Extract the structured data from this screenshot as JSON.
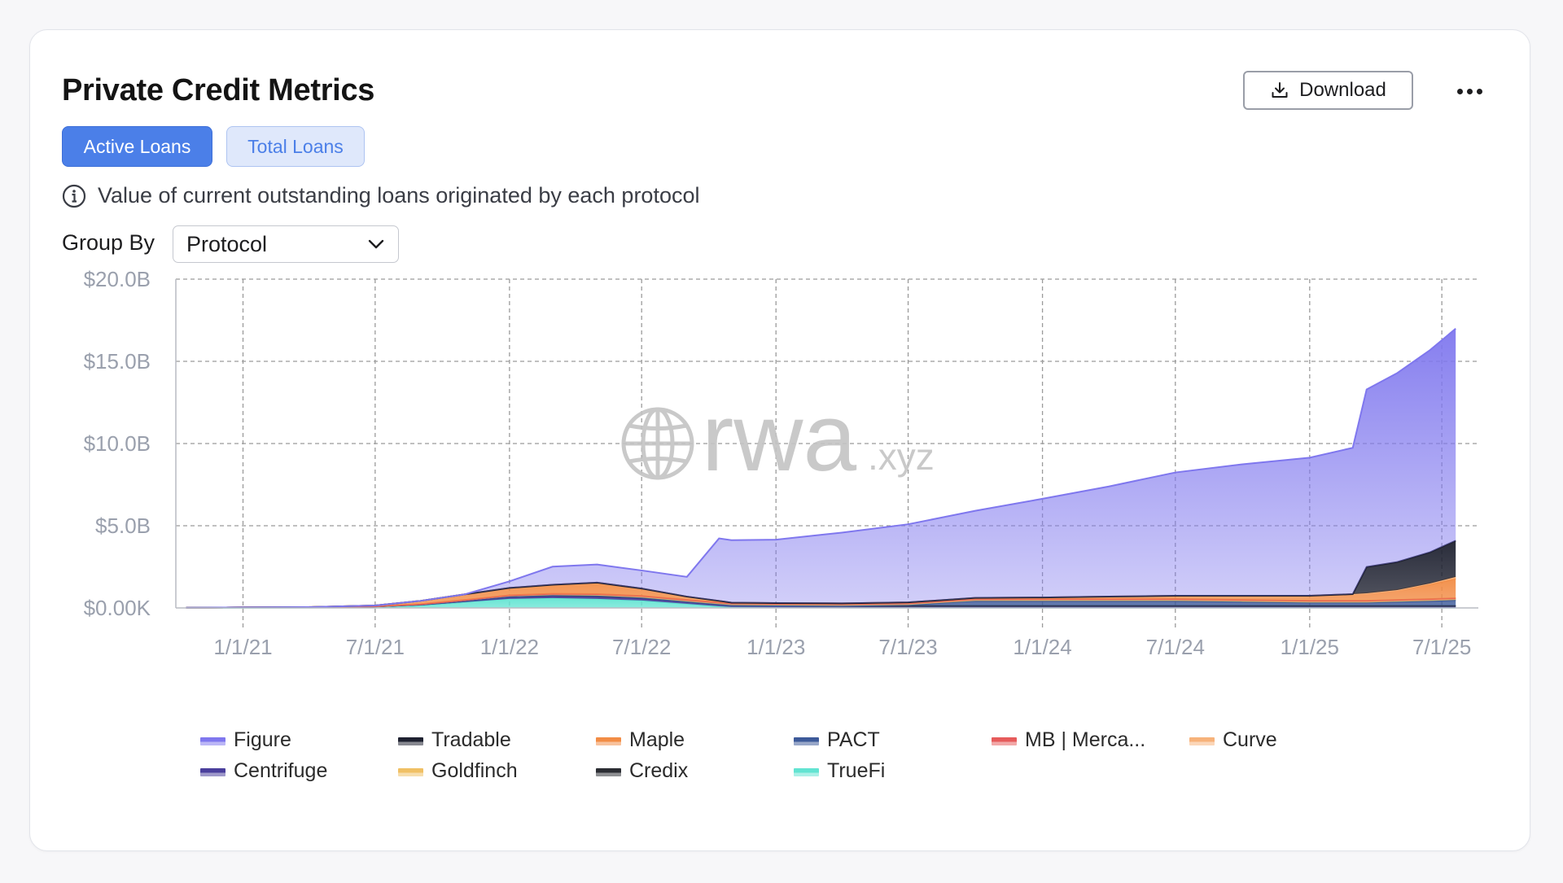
{
  "header": {
    "title": "Private Credit Metrics",
    "download_label": "Download"
  },
  "tabs": [
    {
      "label": "Active Loans",
      "active": true
    },
    {
      "label": "Total Loans",
      "active": false
    }
  ],
  "info_text": "Value of current outstanding loans originated by each protocol",
  "group_by": {
    "label": "Group By",
    "value": "Protocol"
  },
  "watermark": {
    "main": "rwa",
    "suffix": ".xyz"
  },
  "colors": {
    "accent": "#4b7fe8",
    "Figure": "#7f77ee",
    "Centrifuge": "#4a3f9c",
    "Tradable": "#1e2130",
    "Goldfinch": "#f0c064",
    "Maple": "#f28c45",
    "Credix": "#2b2d33",
    "PACT": "#3d5a99",
    "TrueFi": "#62e4d2",
    "MB | Merca...": "#e65b5b",
    "Curve": "#f7b27a"
  },
  "chart_data": {
    "type": "area",
    "stacked": true,
    "x_ticks": [
      "1/1/21",
      "7/1/21",
      "1/1/22",
      "7/1/22",
      "1/1/23",
      "7/1/23",
      "1/1/24",
      "7/1/24",
      "1/1/25",
      "7/1/25"
    ],
    "y_ticks": [
      "$0.00K",
      "$5.0B",
      "$10.0B",
      "$15.0B",
      "$20.0B"
    ],
    "ylim": [
      0,
      20
    ],
    "y_unit": "B",
    "grid": true,
    "legend_position": "bottom",
    "legend": [
      "Figure",
      "Tradable",
      "Maple",
      "PACT",
      "MB | Merca...",
      "Curve",
      "Centrifuge",
      "Goldfinch",
      "Credix",
      "TrueFi"
    ],
    "x": [
      "2020-10-15",
      "2021-01-01",
      "2021-04-01",
      "2021-07-01",
      "2021-09-01",
      "2021-11-01",
      "2022-01-01",
      "2022-03-01",
      "2022-05-01",
      "2022-07-01",
      "2022-09-01",
      "2022-10-15",
      "2022-11-01",
      "2023-01-01",
      "2023-04-01",
      "2023-07-01",
      "2023-10-01",
      "2024-01-01",
      "2024-04-01",
      "2024-07-01",
      "2024-10-01",
      "2025-01-01",
      "2025-03-01",
      "2025-03-20",
      "2025-05-01",
      "2025-06-15",
      "2025-07-20"
    ],
    "series": [
      {
        "name": "TrueFi",
        "values": [
          0,
          0.01,
          0.02,
          0.05,
          0.15,
          0.35,
          0.55,
          0.6,
          0.55,
          0.45,
          0.25,
          0.1,
          0.05,
          0.03,
          0.02,
          0.02,
          0.02,
          0.02,
          0.02,
          0.02,
          0.02,
          0.02,
          0.02,
          0.02,
          0.02,
          0.02,
          0.02
        ]
      },
      {
        "name": "Centrifuge",
        "values": [
          0.01,
          0.02,
          0.03,
          0.04,
          0.05,
          0.06,
          0.1,
          0.12,
          0.13,
          0.12,
          0.1,
          0.1,
          0.1,
          0.1,
          0.1,
          0.1,
          0.1,
          0.1,
          0.1,
          0.1,
          0.1,
          0.1,
          0.1,
          0.1,
          0.1,
          0.1,
          0.1
        ]
      },
      {
        "name": "Credix",
        "values": [
          0,
          0,
          0,
          0,
          0.01,
          0.03,
          0.05,
          0.06,
          0.07,
          0.06,
          0.04,
          0.03,
          0.02,
          0.02,
          0.01,
          0.01,
          0.01,
          0.01,
          0.01,
          0.01,
          0.01,
          0.01,
          0.01,
          0.01,
          0.01,
          0.01,
          0.01
        ]
      },
      {
        "name": "PACT",
        "values": [
          0,
          0,
          0,
          0,
          0,
          0,
          0,
          0,
          0,
          0,
          0,
          0,
          0,
          0,
          0,
          0.05,
          0.3,
          0.3,
          0.3,
          0.3,
          0.25,
          0.2,
          0.2,
          0.2,
          0.25,
          0.3,
          0.35
        ]
      },
      {
        "name": "Goldfinch",
        "values": [
          0,
          0,
          0,
          0.01,
          0.02,
          0.04,
          0.07,
          0.08,
          0.09,
          0.1,
          0.1,
          0.1,
          0.1,
          0.1,
          0.1,
          0.1,
          0.1,
          0.1,
          0.1,
          0.1,
          0.1,
          0.1,
          0.1,
          0.1,
          0.1,
          0.1,
          0.1
        ]
      },
      {
        "name": "MB | Merca...",
        "values": [
          0,
          0,
          0,
          0,
          0,
          0,
          0,
          0,
          0,
          0,
          0,
          0,
          0,
          0,
          0,
          0,
          0,
          0.01,
          0.01,
          0.01,
          0.01,
          0.01,
          0.01,
          0.01,
          0.01,
          0.01,
          0.01
        ]
      },
      {
        "name": "Maple",
        "values": [
          0,
          0,
          0,
          0.05,
          0.2,
          0.35,
          0.45,
          0.55,
          0.7,
          0.45,
          0.2,
          0.1,
          0.05,
          0.05,
          0.05,
          0.06,
          0.08,
          0.1,
          0.15,
          0.2,
          0.25,
          0.3,
          0.4,
          0.45,
          0.6,
          0.9,
          1.2
        ]
      },
      {
        "name": "Curve",
        "values": [
          0,
          0,
          0,
          0,
          0,
          0,
          0,
          0,
          0,
          0,
          0,
          0,
          0,
          0,
          0,
          0,
          0,
          0,
          0,
          0,
          0,
          0,
          0,
          0,
          0,
          0.05,
          0.1
        ]
      },
      {
        "name": "Tradable",
        "values": [
          0,
          0,
          0,
          0,
          0,
          0,
          0,
          0,
          0,
          0,
          0,
          0,
          0,
          0,
          0,
          0,
          0,
          0,
          0,
          0,
          0,
          0,
          0,
          1.6,
          1.7,
          1.9,
          2.2
        ]
      },
      {
        "name": "Figure",
        "values": [
          0,
          0,
          0,
          0,
          0,
          0,
          0.4,
          1.1,
          1.1,
          1.1,
          1.2,
          3.8,
          3.8,
          3.85,
          4.3,
          4.75,
          5.3,
          6.0,
          6.7,
          7.5,
          8.0,
          8.4,
          8.9,
          10.8,
          11.5,
          12.3,
          12.9
        ]
      }
    ]
  }
}
